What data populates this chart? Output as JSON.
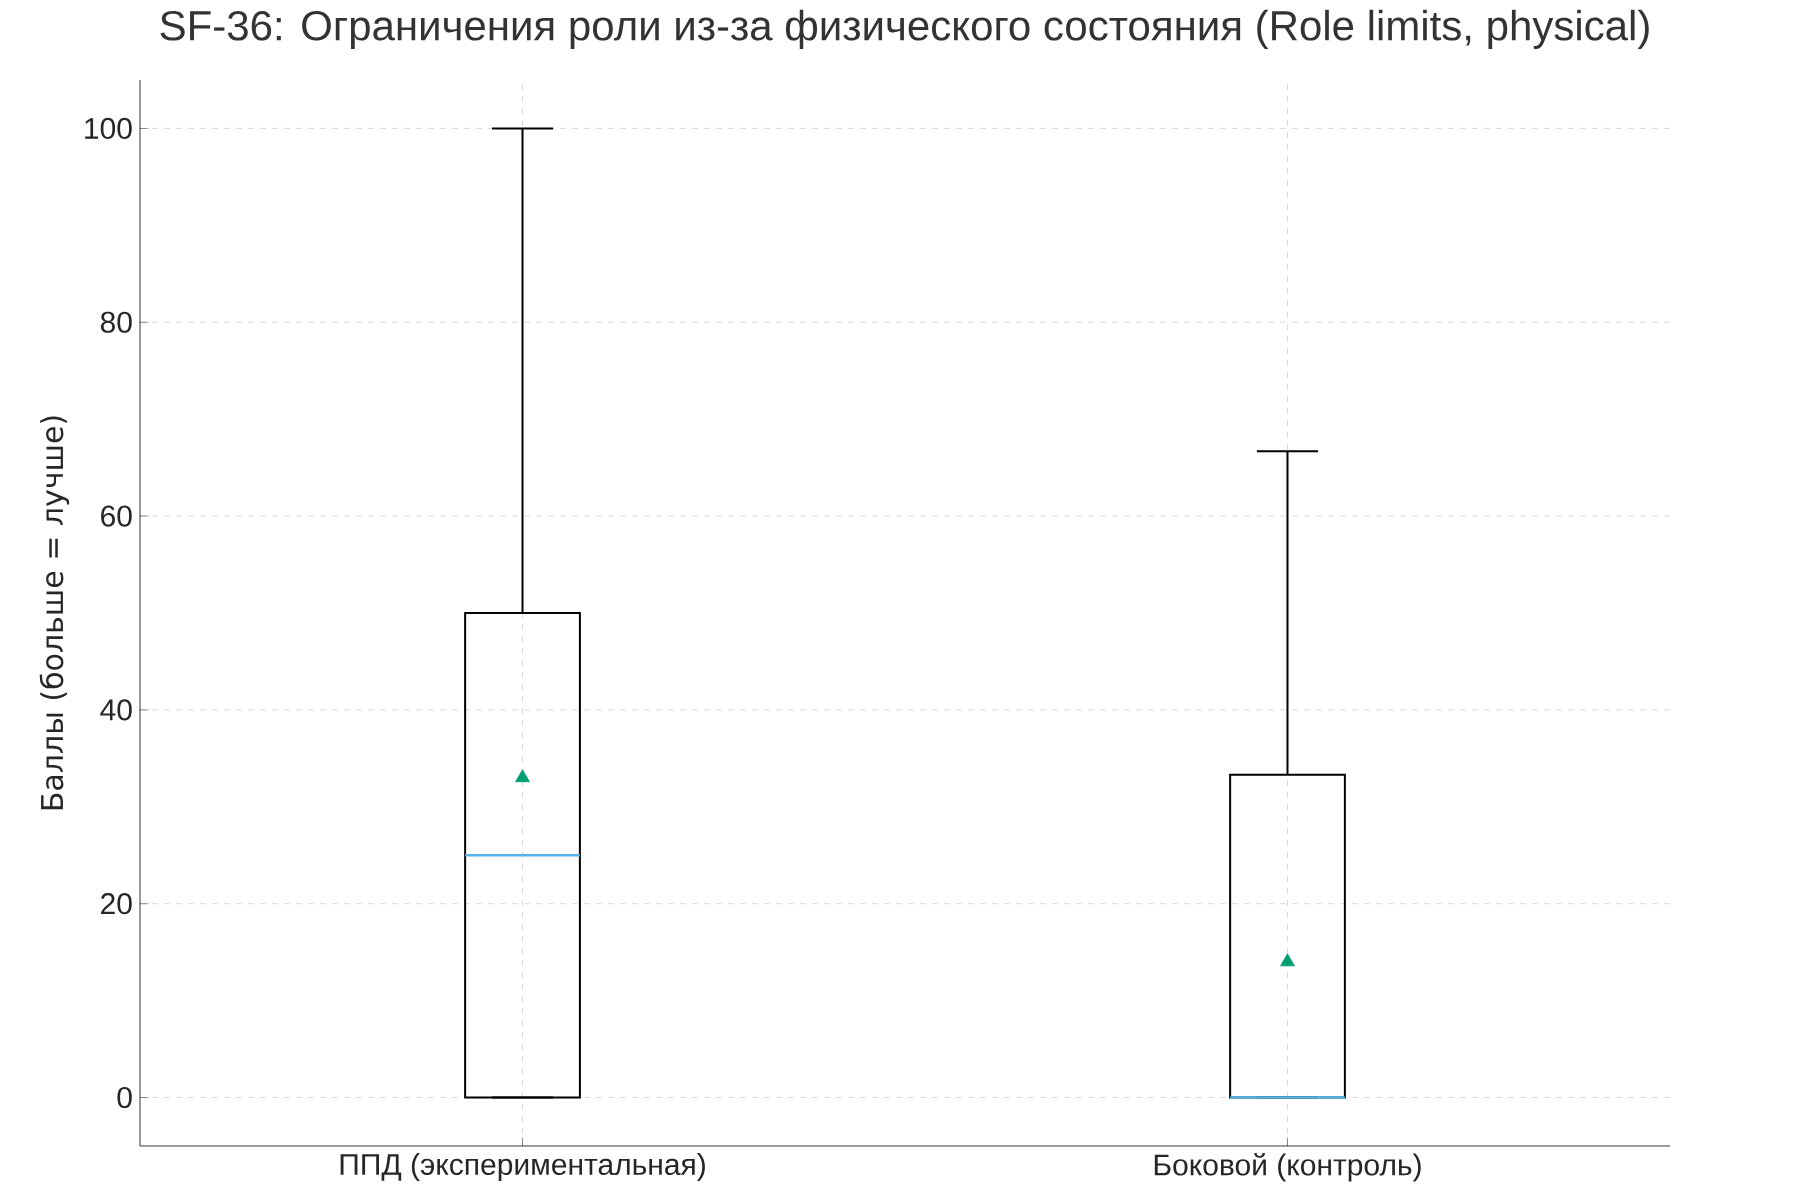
{
  "chart_data": {
    "type": "box",
    "title": "SF-36: Ограничения роли из-за физического состояния (Role limits, physical)",
    "ylabel": "Баллы (больше = лучше)",
    "categories": [
      "ППД (экспериментальная)",
      "Боковой (контроль)"
    ],
    "boxes": [
      {
        "low": 0,
        "q1": 0,
        "median": 25,
        "q3": 50,
        "high": 100,
        "mean": 33
      },
      {
        "low": 0,
        "q1": 0,
        "median": 0,
        "q3": 33.3,
        "high": 66.7,
        "mean": 14
      }
    ],
    "color": "#000000",
    "marker": "triangle",
    "ylim": [
      -5,
      105
    ],
    "yticks": [
      0,
      20,
      40,
      60,
      80,
      100
    ],
    "grid": true
  }
}
